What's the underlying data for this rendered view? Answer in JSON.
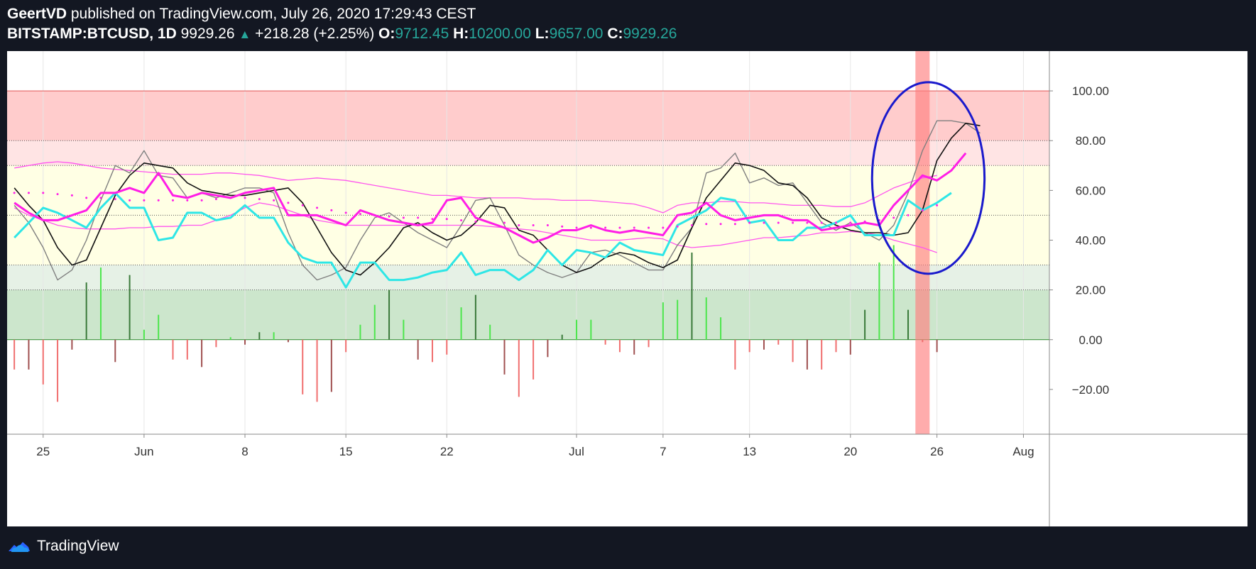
{
  "header": {
    "author": "GeertVD",
    "published_text": "published on TradingView.com, July 26, 2020 17:29:43 CEST",
    "symbol": "BITSTAMP:BTCUSD, 1D",
    "last_price": "9929.26",
    "change": "+218.28 (+2.25%)",
    "o_label": "O:",
    "o_value": "9712.45",
    "h_label": "H:",
    "h_value": "10200.00",
    "l_label": "L:",
    "l_value": "9657.00",
    "c_label": "C:",
    "c_value": "9929.26",
    "change_icon": "triangle-up-icon"
  },
  "footer": {
    "brand": "TradingView",
    "logo_icon": "tradingview-logo-icon"
  },
  "colors": {
    "background": "#131722",
    "accent_green": "#26a69a",
    "magenta": "#ff1ee6",
    "cyan": "#2ee6e6",
    "black_line": "#111111",
    "gray_line": "#7f7f7f",
    "band_line": "#ff55ee",
    "ellipse": "#1a1acc",
    "highlight": "#ff8080",
    "hist_pos_light": "#4ce64c",
    "hist_pos_dark": "#3a7a3a",
    "hist_neg_light": "#f06e6e",
    "hist_neg_dark": "#a05050"
  },
  "chart_data": {
    "type": "line",
    "ylim": [
      -38,
      116
    ],
    "y_ticks": [
      100,
      80,
      60,
      40,
      20,
      0,
      -20
    ],
    "y_tick_labels": [
      "100.00",
      "80.00",
      "60.00",
      "40.00",
      "20.00",
      "0.00",
      "−20.00"
    ],
    "x_ticks": [
      {
        "index": 2,
        "label": "25"
      },
      {
        "index": 9,
        "label": "Jun"
      },
      {
        "index": 16,
        "label": "8"
      },
      {
        "index": 23,
        "label": "15"
      },
      {
        "index": 30,
        "label": "22"
      },
      {
        "index": 39,
        "label": "Jul"
      },
      {
        "index": 45,
        "label": "7"
      },
      {
        "index": 51,
        "label": "13"
      },
      {
        "index": 58,
        "label": "20"
      },
      {
        "index": 64,
        "label": "26"
      },
      {
        "index": 70,
        "label": "Aug"
      }
    ],
    "x_range": [
      -0.5,
      71.8
    ],
    "zones": [
      {
        "from": 80,
        "to": 100,
        "name": "overbought-strong",
        "color": "#ffcccc"
      },
      {
        "from": 70,
        "to": 80,
        "name": "overbought",
        "color": "#ffe4e4"
      },
      {
        "from": 30,
        "to": 70,
        "name": "neutral",
        "color": "#ffffe4"
      },
      {
        "from": 20,
        "to": 30,
        "name": "oversold",
        "color": "#e6f1e6"
      },
      {
        "from": 0,
        "to": 20,
        "name": "oversold-strong",
        "color": "#cce6cc"
      }
    ],
    "levels": [
      100,
      80,
      70,
      50,
      30,
      20,
      0
    ],
    "highlight_index": 63,
    "ellipse": {
      "center_index": 63.4,
      "center_value": 65,
      "radius_index": 3.9,
      "radius_value": 38.5
    },
    "series": [
      {
        "name": "upper-band",
        "style": "thin",
        "values": [
          69,
          70,
          71,
          71.5,
          71,
          70,
          69,
          68.5,
          68,
          67.5,
          67,
          66.5,
          66.5,
          66.5,
          67,
          67,
          66.5,
          66,
          65,
          64,
          64.5,
          65,
          64.5,
          64,
          63,
          62,
          61,
          60,
          59,
          58,
          58,
          57.5,
          57,
          57,
          57,
          57,
          56.5,
          56.5,
          56,
          56,
          56,
          55.5,
          55,
          54.5,
          53,
          51,
          54,
          55,
          55,
          55.5,
          55.5,
          55,
          55,
          54.5,
          54,
          54,
          54,
          53.5,
          53.5,
          55,
          58,
          61,
          63,
          65,
          66
        ]
      },
      {
        "name": "lower-band",
        "style": "thin",
        "values": [
          53,
          50,
          48,
          46,
          45,
          44.5,
          44.5,
          44.5,
          45,
          45,
          45.5,
          45.5,
          46,
          46,
          48,
          50,
          53,
          55,
          54,
          52,
          50,
          48,
          47,
          46,
          46,
          46,
          46,
          46,
          46,
          46,
          46,
          46,
          46,
          45.5,
          45,
          44.5,
          44,
          43,
          42,
          41,
          40,
          40,
          40,
          40.5,
          41,
          40.5,
          38,
          37,
          37.5,
          38,
          39,
          40,
          41,
          41,
          41.5,
          42,
          43,
          43,
          43.5,
          43,
          42,
          40,
          38.5,
          37,
          35
        ]
      },
      {
        "name": "signal-dots",
        "style": "dots",
        "values": [
          59,
          59,
          59,
          58.5,
          58,
          57,
          57,
          56.5,
          56,
          56,
          56,
          56,
          56,
          56,
          56.5,
          57,
          57,
          56.5,
          56,
          55,
          54,
          53,
          52,
          51,
          50.5,
          50,
          49.5,
          49,
          49,
          48.5,
          48.5,
          48,
          47.5,
          47,
          47,
          46,
          46,
          46,
          45.5,
          45,
          45,
          45,
          45,
          45,
          45,
          45,
          45.5,
          46,
          46.5,
          46.5,
          46.5,
          47,
          47,
          47,
          47,
          47,
          47,
          47,
          47,
          47.5,
          48,
          49,
          50,
          52,
          54
        ]
      },
      {
        "name": "fast-line-black",
        "style": "black",
        "values": [
          61,
          54,
          48,
          37,
          30,
          32,
          45,
          58,
          66,
          71,
          70,
          69,
          63,
          60,
          59,
          58,
          58,
          59,
          60,
          61,
          55,
          45,
          35,
          28,
          26,
          31,
          37,
          45,
          47,
          43,
          40,
          42,
          47,
          54,
          53,
          44,
          42,
          36,
          30,
          27,
          29,
          33,
          35,
          34,
          31,
          29,
          32,
          45,
          57,
          64,
          71,
          70,
          68,
          63,
          62,
          57,
          49,
          46,
          44,
          43,
          43,
          42,
          43,
          52,
          72,
          81,
          87,
          86
        ]
      },
      {
        "name": "slow-line-gray",
        "style": "gray",
        "values": [
          54,
          47,
          37,
          24,
          28,
          40,
          56,
          70,
          67,
          76,
          66,
          65,
          57,
          59,
          57,
          59,
          61,
          61,
          59,
          43,
          30,
          24,
          26,
          29,
          40,
          49,
          51,
          47,
          43,
          40,
          37,
          46,
          56,
          57,
          46,
          34,
          30,
          27,
          25,
          27,
          35,
          36,
          34,
          31,
          28,
          28,
          38,
          45,
          67,
          69,
          75,
          63,
          65,
          62,
          63,
          55,
          47,
          44,
          47,
          43,
          40,
          46,
          59,
          76,
          88,
          88,
          87,
          83
        ]
      },
      {
        "name": "magenta-rsi",
        "style": "magenta",
        "values": [
          55,
          51,
          48,
          48,
          50,
          52,
          59,
          59,
          61,
          59,
          67,
          58,
          57,
          59,
          58,
          57,
          59,
          60,
          61,
          50,
          50,
          50,
          48,
          46,
          52,
          50,
          48,
          47,
          46,
          47,
          56,
          57,
          49,
          47,
          45,
          42,
          39,
          41,
          44,
          44,
          46,
          44,
          43,
          44,
          43,
          42,
          50,
          51,
          55,
          50,
          48,
          49,
          50,
          50,
          48,
          48,
          44,
          45,
          46,
          47,
          46,
          54,
          60,
          66,
          64,
          68,
          75
        ]
      },
      {
        "name": "cyan-rsi",
        "style": "cyan",
        "values": [
          41,
          47,
          53,
          51,
          48,
          45,
          53,
          59,
          53,
          53,
          40,
          41,
          51,
          51,
          48,
          49,
          54,
          49,
          49,
          39,
          33,
          31,
          31,
          21,
          31,
          31,
          24,
          24,
          25,
          27,
          28,
          35,
          26,
          28,
          28,
          24,
          28,
          36,
          30,
          36,
          35,
          33,
          39,
          36,
          35,
          34,
          46,
          49,
          52,
          57,
          56,
          47,
          48,
          40,
          40,
          45,
          45,
          47,
          50,
          42,
          42,
          42,
          56,
          52,
          55,
          59
        ]
      },
      {
        "name": "histogram",
        "style": "bars",
        "values": [
          -12,
          -12,
          -18,
          -25,
          -4,
          23,
          29,
          -9,
          26,
          4,
          10,
          -8,
          -8,
          -11,
          -3,
          1,
          -2,
          3,
          3,
          -1,
          -22,
          -25,
          -21,
          -5,
          6,
          14,
          20,
          8,
          -8,
          -9,
          -6,
          13,
          18,
          6,
          -14,
          -23,
          -16,
          -7,
          2,
          8,
          8,
          -2,
          -5,
          -6,
          -3,
          15,
          16,
          35,
          17,
          9,
          -12,
          -5,
          -4,
          -2,
          -9,
          -12,
          -12,
          -5,
          -6,
          12,
          31,
          38,
          12,
          -1,
          -5
        ]
      }
    ]
  }
}
